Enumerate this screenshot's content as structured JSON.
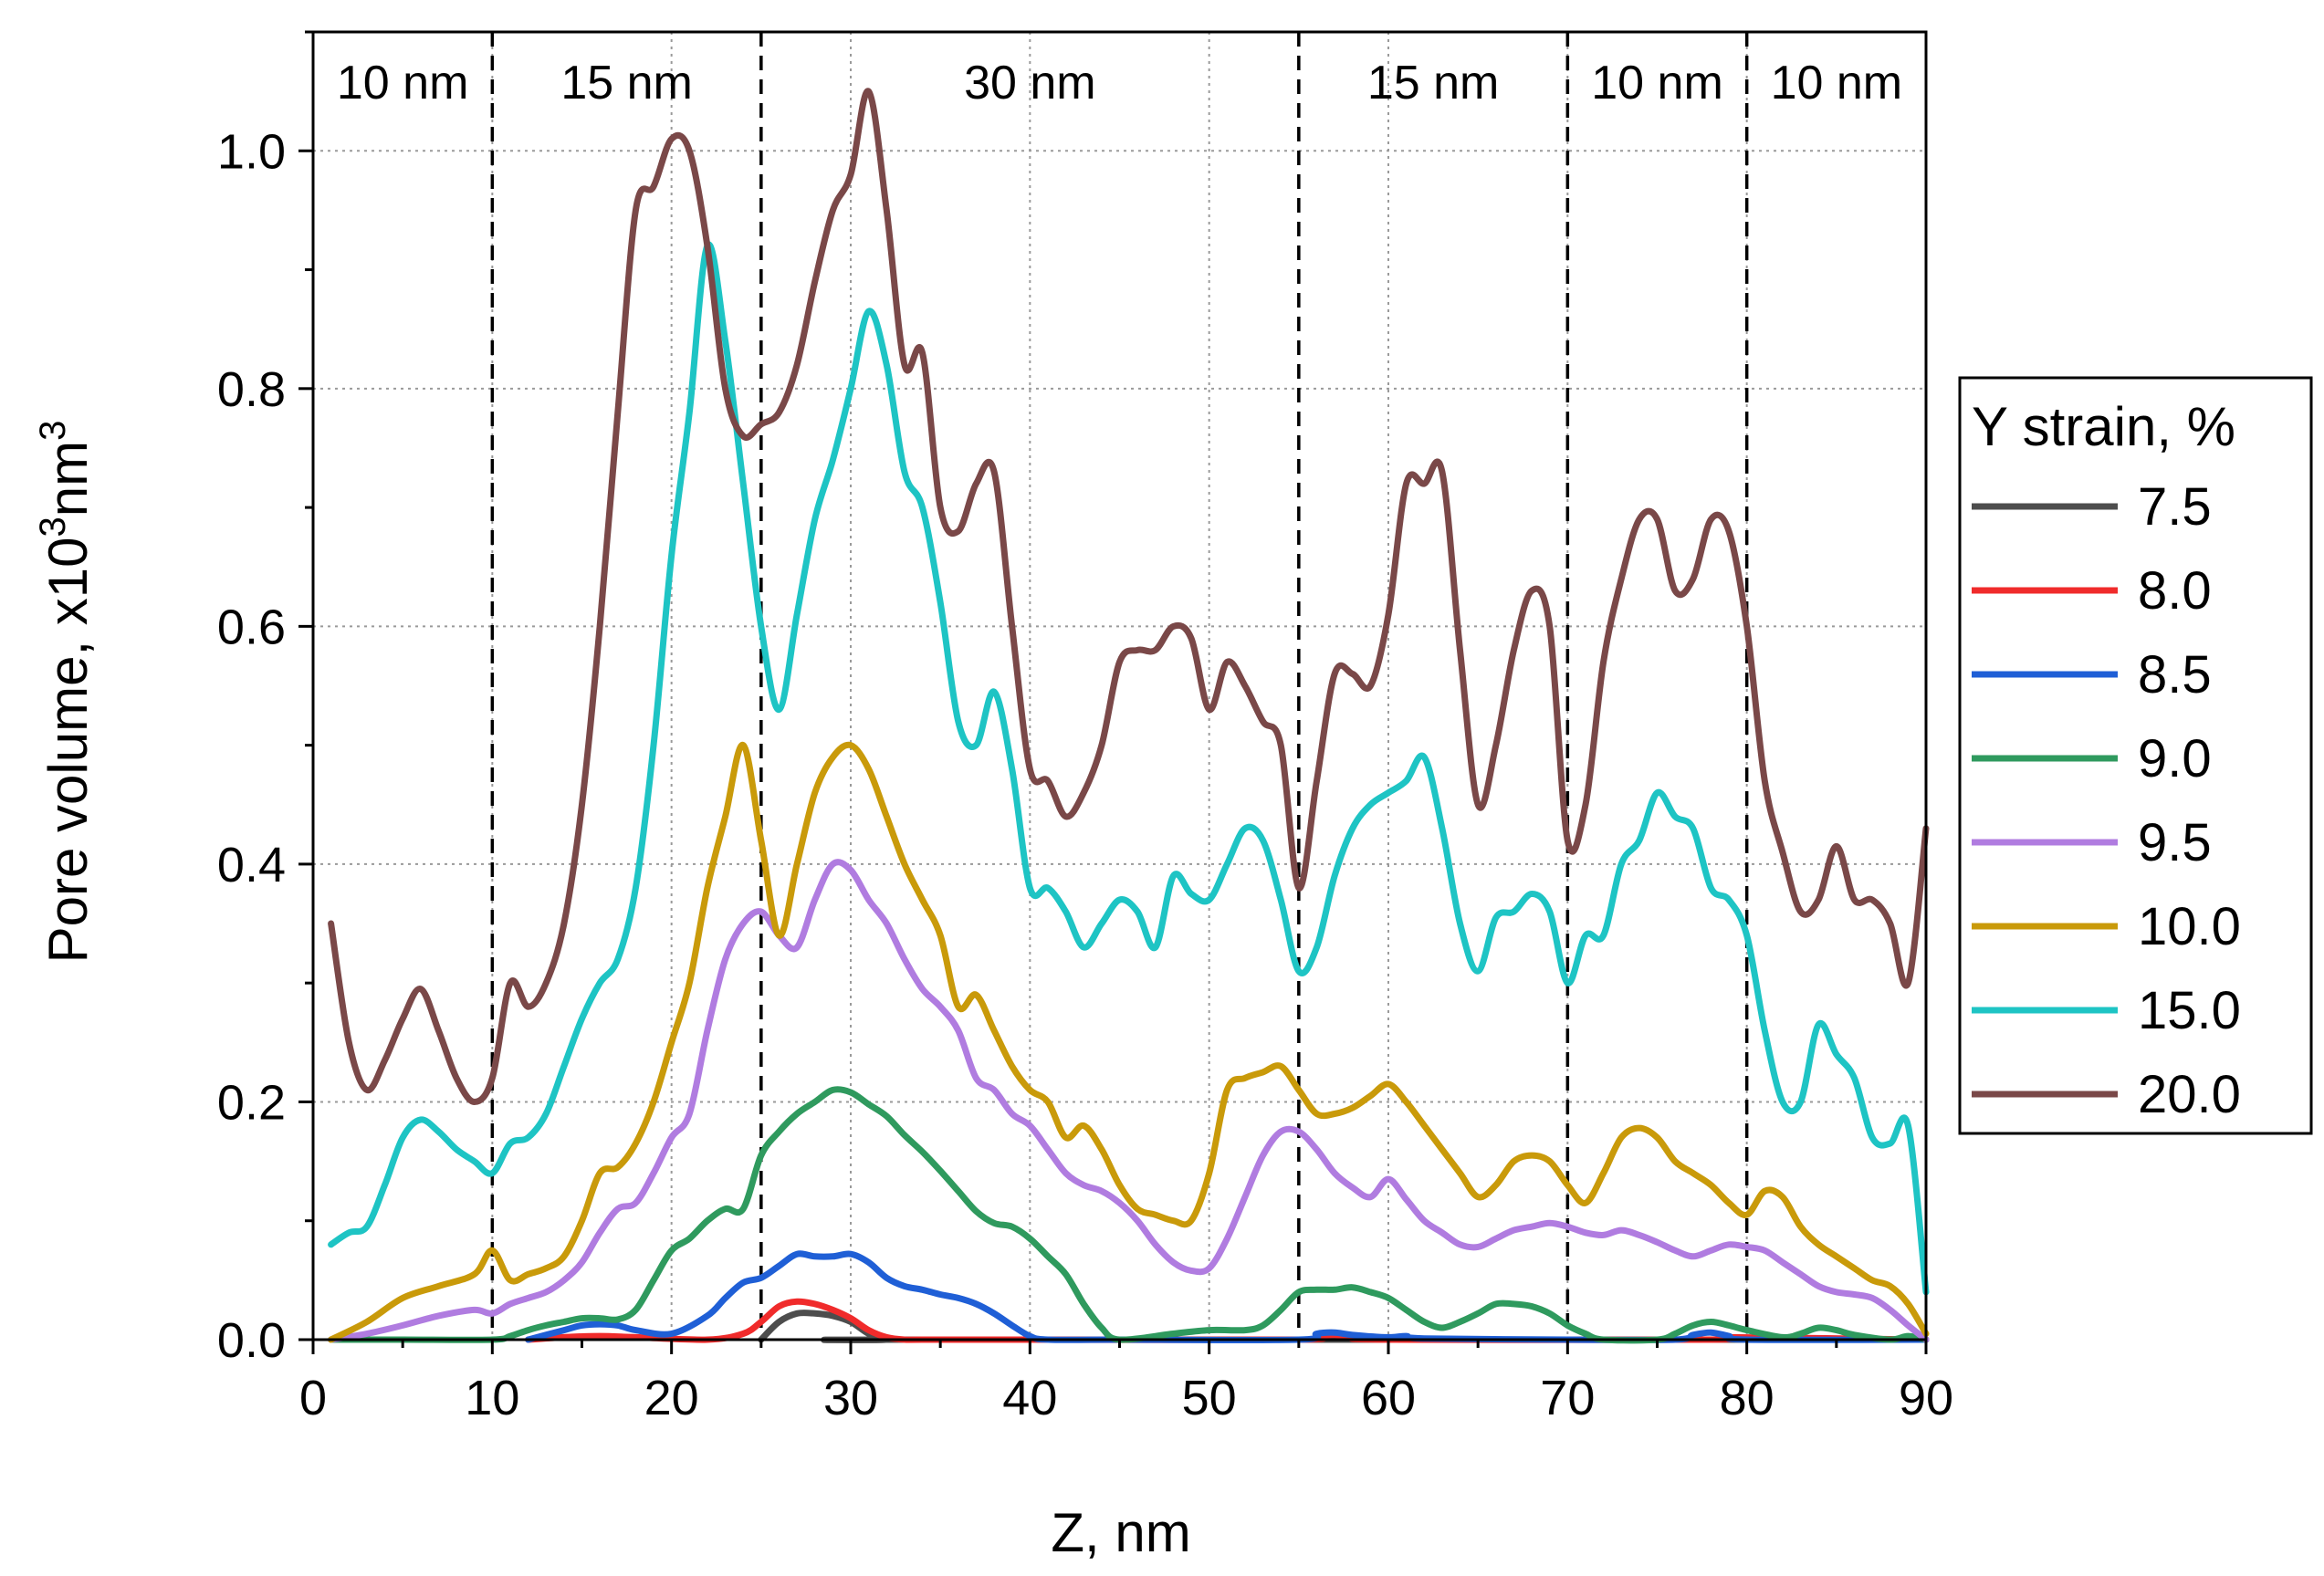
{
  "chart_data": {
    "type": "line",
    "title": "",
    "xlabel": "Z, nm",
    "ylabel_main": "Pore volume, x10",
    "ylabel_sup1": "3",
    "ylabel_mid": "nm",
    "ylabel_sup2": "3",
    "xlim": [
      0,
      90
    ],
    "ylim": [
      0,
      1.1
    ],
    "xticks": [
      0,
      10,
      20,
      30,
      40,
      50,
      60,
      70,
      80,
      90
    ],
    "xtick_labels": [
      "0",
      "10",
      "20",
      "30",
      "40",
      "50",
      "60",
      "70",
      "80",
      "90"
    ],
    "yticks": [
      0.0,
      0.2,
      0.4,
      0.6,
      0.8,
      1.0
    ],
    "ytick_labels": [
      "0.0",
      "0.2",
      "0.4",
      "0.6",
      "0.8",
      "1.0"
    ],
    "grid": true,
    "vlines": [
      10,
      25,
      55,
      70,
      80
    ],
    "segments": [
      {
        "label": "10 nm",
        "x": 5
      },
      {
        "label": "15 nm",
        "x": 17.5
      },
      {
        "label": "30 nm",
        "x": 40
      },
      {
        "label": "15 nm",
        "x": 62.5
      },
      {
        "label": "10 nm",
        "x": 75
      },
      {
        "label": "10 nm",
        "x": 85
      }
    ],
    "legend_title": "Y strain, %",
    "legend_position": "right",
    "series": [
      {
        "name": "7.5",
        "color": "#4d4d4d",
        "x": [
          25,
          26,
          27,
          28,
          29,
          30,
          31,
          32,
          33,
          90
        ],
        "y": [
          0.0,
          0.015,
          0.022,
          0.022,
          0.02,
          0.015,
          0.005,
          0.0,
          0.0,
          0.0
        ]
      },
      {
        "name": "8.0",
        "color": "#f02b2b",
        "x": [
          12,
          14,
          16,
          18,
          22,
          24,
          25,
          26,
          27,
          28,
          29,
          30,
          31,
          32,
          33,
          34,
          40,
          55,
          56,
          57,
          58,
          60,
          78,
          79,
          90
        ],
        "y": [
          0.0,
          0.002,
          0.003,
          0.002,
          0.0,
          0.005,
          0.015,
          0.028,
          0.032,
          0.03,
          0.025,
          0.018,
          0.008,
          0.002,
          0.0,
          0.0,
          0.0,
          0.0,
          0.003,
          0.004,
          0.002,
          0.0,
          0.0,
          0.002,
          0.0
        ]
      },
      {
        "name": "8.5",
        "color": "#1f5fd6",
        "x": [
          12,
          14,
          15,
          16,
          17,
          18,
          20,
          22,
          23,
          24,
          25,
          26,
          27,
          28,
          29,
          30,
          31,
          32,
          33,
          34,
          35,
          36,
          37,
          38,
          39,
          40,
          41,
          45,
          55,
          56,
          57,
          58,
          60,
          61,
          62,
          70,
          76,
          77,
          78,
          79,
          80,
          90
        ],
        "y": [
          0.0,
          0.008,
          0.012,
          0.013,
          0.012,
          0.008,
          0.005,
          0.02,
          0.035,
          0.048,
          0.052,
          0.062,
          0.072,
          0.07,
          0.07,
          0.072,
          0.065,
          0.052,
          0.045,
          0.042,
          0.038,
          0.035,
          0.03,
          0.022,
          0.012,
          0.003,
          0.0,
          0.0,
          0.0,
          0.005,
          0.006,
          0.004,
          0.002,
          0.003,
          0.001,
          0.0,
          0.0,
          0.004,
          0.006,
          0.003,
          0.0,
          0.0
        ]
      },
      {
        "name": "9.0",
        "color": "#2f9a5e",
        "x": [
          1,
          5,
          10,
          11,
          12,
          13,
          14,
          15,
          16,
          17,
          18,
          19,
          20,
          21,
          22,
          23,
          24,
          25,
          26,
          27,
          28,
          29,
          30,
          31,
          32,
          33,
          34,
          35,
          36,
          37,
          38,
          39,
          40,
          41,
          42,
          43,
          44,
          45,
          48,
          50,
          52,
          53,
          54,
          55,
          56,
          57,
          58,
          59,
          60,
          61,
          62,
          63,
          64,
          65,
          66,
          67,
          68,
          69,
          70,
          71,
          72,
          75,
          76,
          77,
          78,
          79,
          80,
          82,
          83,
          84,
          85,
          86,
          88,
          89,
          90
        ],
        "y": [
          0.0,
          0.0,
          0.0,
          0.003,
          0.008,
          0.012,
          0.015,
          0.018,
          0.018,
          0.017,
          0.025,
          0.05,
          0.075,
          0.085,
          0.1,
          0.11,
          0.11,
          0.155,
          0.175,
          0.19,
          0.2,
          0.21,
          0.208,
          0.198,
          0.188,
          0.172,
          0.158,
          0.142,
          0.125,
          0.108,
          0.098,
          0.095,
          0.085,
          0.07,
          0.055,
          0.03,
          0.01,
          0.0,
          0.005,
          0.008,
          0.008,
          0.012,
          0.025,
          0.04,
          0.042,
          0.042,
          0.044,
          0.04,
          0.035,
          0.025,
          0.015,
          0.01,
          0.015,
          0.022,
          0.03,
          0.03,
          0.028,
          0.022,
          0.012,
          0.005,
          0.0,
          0.0,
          0.005,
          0.012,
          0.015,
          0.012,
          0.008,
          0.002,
          0.005,
          0.01,
          0.008,
          0.004,
          0.0,
          0.003,
          0.0
        ]
      },
      {
        "name": "9.5",
        "color": "#b07ce0",
        "x": [
          1,
          3,
          5,
          7,
          9,
          10,
          11,
          12,
          13,
          14,
          15,
          16,
          17,
          18,
          19,
          20,
          21,
          22,
          23,
          24,
          25,
          26,
          27,
          28,
          29,
          30,
          31,
          32,
          33,
          34,
          35,
          36,
          37,
          38,
          39,
          40,
          41,
          42,
          43,
          44,
          45,
          46,
          47,
          48,
          49,
          50,
          51,
          52,
          53,
          54,
          55,
          56,
          57,
          58,
          59,
          60,
          61,
          62,
          63,
          64,
          65,
          66,
          67,
          68,
          69,
          70,
          71,
          72,
          73,
          74,
          75,
          76,
          77,
          78,
          79,
          80,
          81,
          82,
          83,
          84,
          85,
          86,
          87,
          88,
          89,
          90
        ],
        "y": [
          0.0,
          0.005,
          0.012,
          0.02,
          0.025,
          0.022,
          0.03,
          0.035,
          0.04,
          0.05,
          0.065,
          0.09,
          0.11,
          0.115,
          0.14,
          0.17,
          0.19,
          0.26,
          0.32,
          0.35,
          0.36,
          0.34,
          0.33,
          0.37,
          0.4,
          0.395,
          0.37,
          0.35,
          0.32,
          0.295,
          0.28,
          0.26,
          0.22,
          0.21,
          0.19,
          0.18,
          0.16,
          0.14,
          0.13,
          0.125,
          0.115,
          0.1,
          0.08,
          0.065,
          0.058,
          0.06,
          0.085,
          0.12,
          0.155,
          0.175,
          0.175,
          0.16,
          0.14,
          0.128,
          0.12,
          0.135,
          0.118,
          0.1,
          0.09,
          0.08,
          0.078,
          0.085,
          0.092,
          0.095,
          0.098,
          0.095,
          0.09,
          0.088,
          0.092,
          0.088,
          0.082,
          0.075,
          0.07,
          0.075,
          0.08,
          0.078,
          0.075,
          0.065,
          0.055,
          0.045,
          0.04,
          0.038,
          0.035,
          0.025,
          0.012,
          0.0
        ]
      },
      {
        "name": "10.0",
        "color": "#c99a0a",
        "x": [
          1,
          3,
          5,
          7,
          9,
          10,
          11,
          12,
          13,
          14,
          15,
          16,
          17,
          18,
          19,
          20,
          21,
          22,
          23,
          24,
          25,
          26,
          27,
          28,
          29,
          30,
          31,
          32,
          33,
          34,
          35,
          36,
          37,
          38,
          39,
          40,
          41,
          42,
          43,
          44,
          45,
          46,
          47,
          48,
          49,
          50,
          51,
          52,
          53,
          54,
          55,
          56,
          57,
          58,
          59,
          60,
          61,
          62,
          63,
          64,
          65,
          66,
          67,
          68,
          69,
          70,
          71,
          72,
          73,
          74,
          75,
          76,
          77,
          78,
          79,
          80,
          81,
          82,
          83,
          84,
          85,
          86,
          87,
          88,
          89,
          90
        ],
        "y": [
          0.0,
          0.015,
          0.035,
          0.045,
          0.055,
          0.075,
          0.05,
          0.055,
          0.06,
          0.07,
          0.1,
          0.14,
          0.145,
          0.165,
          0.2,
          0.25,
          0.3,
          0.38,
          0.44,
          0.5,
          0.42,
          0.34,
          0.4,
          0.46,
          0.49,
          0.5,
          0.48,
          0.44,
          0.4,
          0.37,
          0.34,
          0.28,
          0.29,
          0.26,
          0.23,
          0.21,
          0.2,
          0.17,
          0.18,
          0.16,
          0.13,
          0.11,
          0.105,
          0.1,
          0.1,
          0.14,
          0.21,
          0.22,
          0.225,
          0.23,
          0.21,
          0.19,
          0.19,
          0.195,
          0.205,
          0.215,
          0.2,
          0.18,
          0.16,
          0.14,
          0.12,
          0.13,
          0.15,
          0.155,
          0.15,
          0.13,
          0.115,
          0.14,
          0.17,
          0.178,
          0.17,
          0.15,
          0.14,
          0.13,
          0.115,
          0.105,
          0.125,
          0.12,
          0.095,
          0.08,
          0.07,
          0.06,
          0.05,
          0.045,
          0.03,
          0.005
        ]
      },
      {
        "name": "15.0",
        "color": "#1ec4c4",
        "x": [
          1,
          2,
          3,
          4,
          5,
          6,
          7,
          8,
          9,
          10,
          11,
          12,
          13,
          14,
          15,
          16,
          17,
          18,
          19,
          20,
          21,
          22,
          23,
          24,
          25,
          26,
          27,
          28,
          29,
          30,
          31,
          32,
          33,
          34,
          35,
          36,
          37,
          38,
          39,
          40,
          41,
          42,
          43,
          44,
          45,
          46,
          47,
          48,
          49,
          50,
          51,
          52,
          53,
          54,
          55,
          56,
          57,
          58,
          59,
          60,
          61,
          62,
          63,
          64,
          65,
          66,
          67,
          68,
          69,
          70,
          71,
          72,
          73,
          74,
          75,
          76,
          77,
          78,
          79,
          80,
          81,
          82,
          83,
          84,
          85,
          86,
          87,
          88,
          89,
          90
        ],
        "y": [
          0.08,
          0.09,
          0.095,
          0.13,
          0.17,
          0.185,
          0.175,
          0.16,
          0.15,
          0.14,
          0.165,
          0.17,
          0.19,
          0.23,
          0.27,
          0.3,
          0.32,
          0.38,
          0.5,
          0.66,
          0.78,
          0.92,
          0.84,
          0.72,
          0.6,
          0.53,
          0.61,
          0.69,
          0.74,
          0.8,
          0.865,
          0.82,
          0.73,
          0.7,
          0.62,
          0.52,
          0.5,
          0.545,
          0.48,
          0.38,
          0.38,
          0.36,
          0.33,
          0.35,
          0.37,
          0.36,
          0.33,
          0.39,
          0.375,
          0.37,
          0.4,
          0.43,
          0.42,
          0.37,
          0.31,
          0.33,
          0.39,
          0.43,
          0.45,
          0.46,
          0.47,
          0.49,
          0.43,
          0.35,
          0.31,
          0.355,
          0.36,
          0.375,
          0.36,
          0.3,
          0.34,
          0.34,
          0.4,
          0.42,
          0.46,
          0.44,
          0.43,
          0.38,
          0.37,
          0.34,
          0.26,
          0.2,
          0.2,
          0.265,
          0.24,
          0.22,
          0.17,
          0.165,
          0.18,
          0.04
        ]
      },
      {
        "name": "20.0",
        "color": "#7a4848",
        "x": [
          1,
          2,
          3,
          4,
          5,
          6,
          7,
          8,
          9,
          10,
          11,
          12,
          13,
          14,
          15,
          16,
          17,
          18,
          19,
          20,
          21,
          22,
          23,
          24,
          25,
          26,
          27,
          28,
          29,
          30,
          31,
          32,
          33,
          34,
          35,
          36,
          37,
          38,
          39,
          40,
          41,
          42,
          43,
          44,
          45,
          46,
          47,
          48,
          49,
          50,
          51,
          52,
          53,
          54,
          55,
          56,
          57,
          58,
          59,
          60,
          61,
          62,
          63,
          64,
          65,
          66,
          67,
          68,
          69,
          70,
          71,
          72,
          73,
          74,
          75,
          76,
          77,
          78,
          79,
          80,
          81,
          82,
          83,
          84,
          85,
          86,
          87,
          88,
          89,
          90
        ],
        "y": [
          0.35,
          0.25,
          0.21,
          0.235,
          0.27,
          0.295,
          0.26,
          0.22,
          0.2,
          0.22,
          0.3,
          0.28,
          0.3,
          0.35,
          0.45,
          0.6,
          0.78,
          0.95,
          0.97,
          1.01,
          1.0,
          0.92,
          0.8,
          0.76,
          0.77,
          0.78,
          0.82,
          0.89,
          0.95,
          0.98,
          1.05,
          0.95,
          0.82,
          0.83,
          0.7,
          0.68,
          0.72,
          0.73,
          0.6,
          0.48,
          0.47,
          0.44,
          0.46,
          0.5,
          0.57,
          0.58,
          0.58,
          0.6,
          0.59,
          0.53,
          0.57,
          0.55,
          0.52,
          0.5,
          0.38,
          0.47,
          0.56,
          0.56,
          0.55,
          0.61,
          0.72,
          0.72,
          0.73,
          0.58,
          0.45,
          0.5,
          0.58,
          0.63,
          0.6,
          0.42,
          0.45,
          0.57,
          0.64,
          0.69,
          0.69,
          0.63,
          0.64,
          0.69,
          0.68,
          0.6,
          0.47,
          0.41,
          0.36,
          0.37,
          0.415,
          0.37,
          0.37,
          0.35,
          0.3,
          0.43
        ]
      }
    ]
  }
}
